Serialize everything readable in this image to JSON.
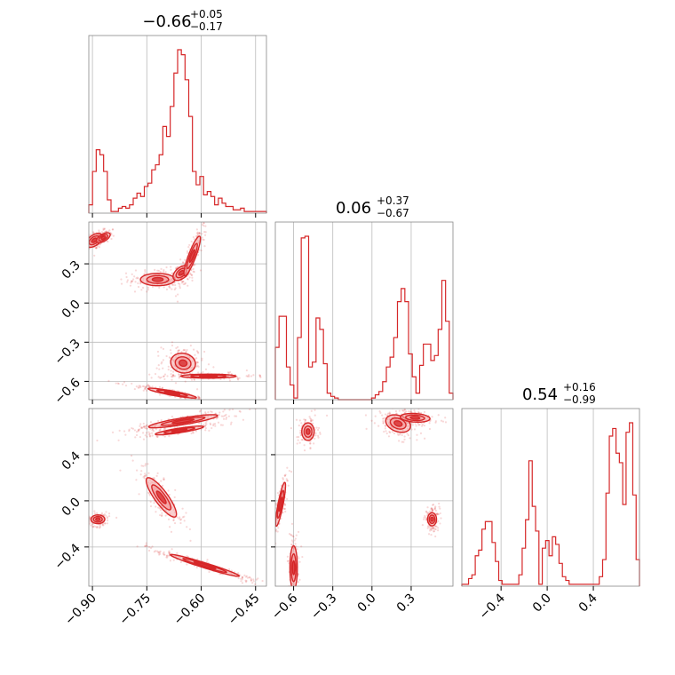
{
  "chart_data": {
    "type": "corner",
    "color": "#d62728",
    "fill_color": "#f4a5a6",
    "grid": true,
    "parameters": [
      {
        "range": [
          -0.91,
          -0.42
        ],
        "ticks": [
          -0.9,
          -0.75,
          -0.6,
          -0.45
        ],
        "tick_labels": [
          "−0.90",
          "−0.75",
          "−0.60",
          "−0.45"
        ],
        "title": {
          "median": "−0.66",
          "plus": "+0.05",
          "minus": "−0.17"
        },
        "histogram": [
          0.05,
          0.25,
          0.38,
          0.35,
          0.25,
          0.08,
          0.01,
          0.01,
          0.03,
          0.04,
          0.03,
          0.05,
          0.09,
          0.12,
          0.1,
          0.16,
          0.18,
          0.26,
          0.29,
          0.35,
          0.52,
          0.46,
          0.64,
          0.84,
          0.98,
          0.95,
          0.8,
          0.58,
          0.25,
          0.17,
          0.22,
          0.11,
          0.13,
          0.1,
          0.05,
          0.09,
          0.06,
          0.04,
          0.04,
          0.02,
          0.02,
          0.03,
          0.01,
          0.01,
          0.01,
          0.01,
          0.01,
          0.01
        ]
      },
      {
        "range": [
          -0.74,
          0.62
        ],
        "ticks": [
          -0.6,
          -0.3,
          0.0,
          0.3
        ],
        "tick_labels": [
          "−0.6",
          "−0.3",
          "0.0",
          "0.3"
        ],
        "title": {
          "median": "0.06",
          "plus": "+0.37",
          "minus": "−0.67"
        },
        "histogram": [
          0.32,
          0.51,
          0.51,
          0.2,
          0.09,
          0.01,
          0.38,
          0.99,
          1.0,
          0.2,
          0.23,
          0.5,
          0.43,
          0.22,
          0.04,
          0.02,
          0.01,
          0.0,
          0.0,
          0.0,
          0.0,
          0.0,
          0.0,
          0.0,
          0.0,
          0.0,
          0.01,
          0.03,
          0.05,
          0.11,
          0.2,
          0.26,
          0.38,
          0.6,
          0.68,
          0.6,
          0.28,
          0.14,
          0.04,
          0.21,
          0.34,
          0.34,
          0.24,
          0.27,
          0.43,
          0.73,
          0.48,
          0.04
        ]
      },
      {
        "range": [
          -0.74,
          0.8
        ],
        "ticks": [
          -0.4,
          0.0,
          0.4
        ],
        "tick_labels": [
          "−0.4",
          "0.0",
          "0.4"
        ],
        "title": {
          "median": "0.54",
          "plus": "+0.16",
          "minus": "−0.99"
        },
        "histogram": [
          0.01,
          0.01,
          0.04,
          0.06,
          0.16,
          0.19,
          0.3,
          0.34,
          0.34,
          0.23,
          0.13,
          0.03,
          0.01,
          0.01,
          0.01,
          0.01,
          0.01,
          0.06,
          0.2,
          0.35,
          0.66,
          0.42,
          0.29,
          0.01,
          0.2,
          0.24,
          0.16,
          0.26,
          0.22,
          0.12,
          0.05,
          0.03,
          0.01,
          0.01,
          0.01,
          0.01,
          0.01,
          0.01,
          0.01,
          0.01,
          0.01,
          0.05,
          0.14,
          0.49,
          0.79,
          0.83,
          0.7,
          0.65,
          0.43,
          0.81,
          0.86,
          0.48,
          0.14
        ]
      }
    ],
    "pair_clusters": {
      "1_0": [
        {
          "x": -0.895,
          "y": 0.48,
          "sx": 0.012,
          "sy": 0.028,
          "rho": 0.5,
          "n": 140
        },
        {
          "x": -0.87,
          "y": 0.5,
          "sx": 0.01,
          "sy": 0.02,
          "rho": 0.6,
          "n": 60
        },
        {
          "x": -0.72,
          "y": 0.18,
          "sx": 0.025,
          "sy": 0.025,
          "rho": 0.0,
          "n": 150
        },
        {
          "x": -0.655,
          "y": 0.23,
          "sx": 0.012,
          "sy": 0.03,
          "rho": 0.5,
          "n": 90
        },
        {
          "x": -0.625,
          "y": 0.36,
          "sx": 0.012,
          "sy": 0.08,
          "rho": 0.88,
          "n": 160
        },
        {
          "x": -0.65,
          "y": -0.46,
          "sx": 0.018,
          "sy": 0.04,
          "rho": -0.1,
          "n": 180
        },
        {
          "x": -0.58,
          "y": -0.56,
          "sx": 0.04,
          "sy": 0.008,
          "rho": 0.0,
          "n": 150
        },
        {
          "x": -0.68,
          "y": -0.69,
          "sx": 0.035,
          "sy": 0.02,
          "rho": -0.9,
          "n": 180
        }
      ],
      "2_0": [
        {
          "x": -0.885,
          "y": -0.16,
          "sx": 0.01,
          "sy": 0.02,
          "rho": 0.0,
          "n": 150
        },
        {
          "x": -0.71,
          "y": 0.03,
          "sx": 0.022,
          "sy": 0.09,
          "rho": -0.85,
          "n": 160
        },
        {
          "x": -0.65,
          "y": 0.69,
          "sx": 0.05,
          "sy": 0.03,
          "rho": 0.85,
          "n": 220
        },
        {
          "x": -0.66,
          "y": 0.61,
          "sx": 0.035,
          "sy": 0.02,
          "rho": 0.85,
          "n": 120
        },
        {
          "x": -0.59,
          "y": -0.56,
          "sx": 0.05,
          "sy": 0.05,
          "rho": -0.97,
          "n": 220
        }
      ],
      "2_1": [
        {
          "x": -0.6,
          "y": -0.58,
          "sx": 0.015,
          "sy": 0.1,
          "rho": 0.0,
          "n": 150
        },
        {
          "x": -0.7,
          "y": -0.03,
          "sx": 0.02,
          "sy": 0.1,
          "rho": 0.85,
          "n": 140
        },
        {
          "x": -0.49,
          "y": 0.6,
          "sx": 0.025,
          "sy": 0.04,
          "rho": 0.0,
          "n": 140
        },
        {
          "x": 0.2,
          "y": 0.67,
          "sx": 0.05,
          "sy": 0.04,
          "rho": -0.3,
          "n": 180
        },
        {
          "x": 0.33,
          "y": 0.72,
          "sx": 0.06,
          "sy": 0.02,
          "rho": -0.2,
          "n": 140
        },
        {
          "x": 0.46,
          "y": -0.16,
          "sx": 0.018,
          "sy": 0.03,
          "rho": 0.0,
          "n": 150
        }
      ]
    }
  }
}
